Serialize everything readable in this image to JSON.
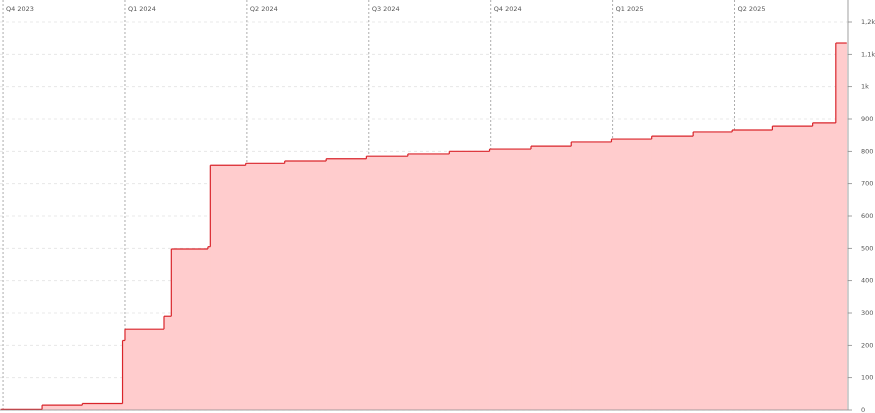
{
  "chart_data": {
    "type": "step-area",
    "x": [
      -0.02,
      0.32,
      0.65,
      0.98,
      1.0,
      1.32,
      1.38,
      1.68,
      1.7,
      1.99,
      2.31,
      2.65,
      2.98,
      3.32,
      3.66,
      3.99,
      4.33,
      4.66,
      4.99,
      5.32,
      5.66,
      5.98,
      6.31,
      6.64,
      6.83,
      6.92
    ],
    "values": [
      2,
      15,
      20,
      215,
      250,
      290,
      498,
      505,
      757,
      763,
      770,
      777,
      785,
      792,
      800,
      807,
      816,
      829,
      838,
      847,
      860,
      866,
      878,
      888,
      1135,
      1135
    ],
    "color": "#d9252b",
    "fill": "#ffcccd",
    "xlim": [
      -0.025,
      6.93
    ],
    "xticks": [
      {
        "value": 0,
        "label": "Q4 2023"
      },
      {
        "value": 1,
        "label": "Q1 2024"
      },
      {
        "value": 2,
        "label": "Q2 2024"
      },
      {
        "value": 3,
        "label": "Q3 2024"
      },
      {
        "value": 4,
        "label": "Q4 2024"
      },
      {
        "value": 5,
        "label": "Q1 2025"
      },
      {
        "value": 6,
        "label": "Q2 2025"
      }
    ],
    "ylim": [
      0,
      1260
    ],
    "yticks": [
      0,
      100,
      200,
      300,
      400,
      500,
      600,
      700,
      800,
      900,
      {
        "value": 1000,
        "label": "1k"
      },
      {
        "value": 1100,
        "label": "1,1k"
      },
      {
        "value": 1200,
        "label": "1,2k"
      }
    ],
    "grid": true
  }
}
